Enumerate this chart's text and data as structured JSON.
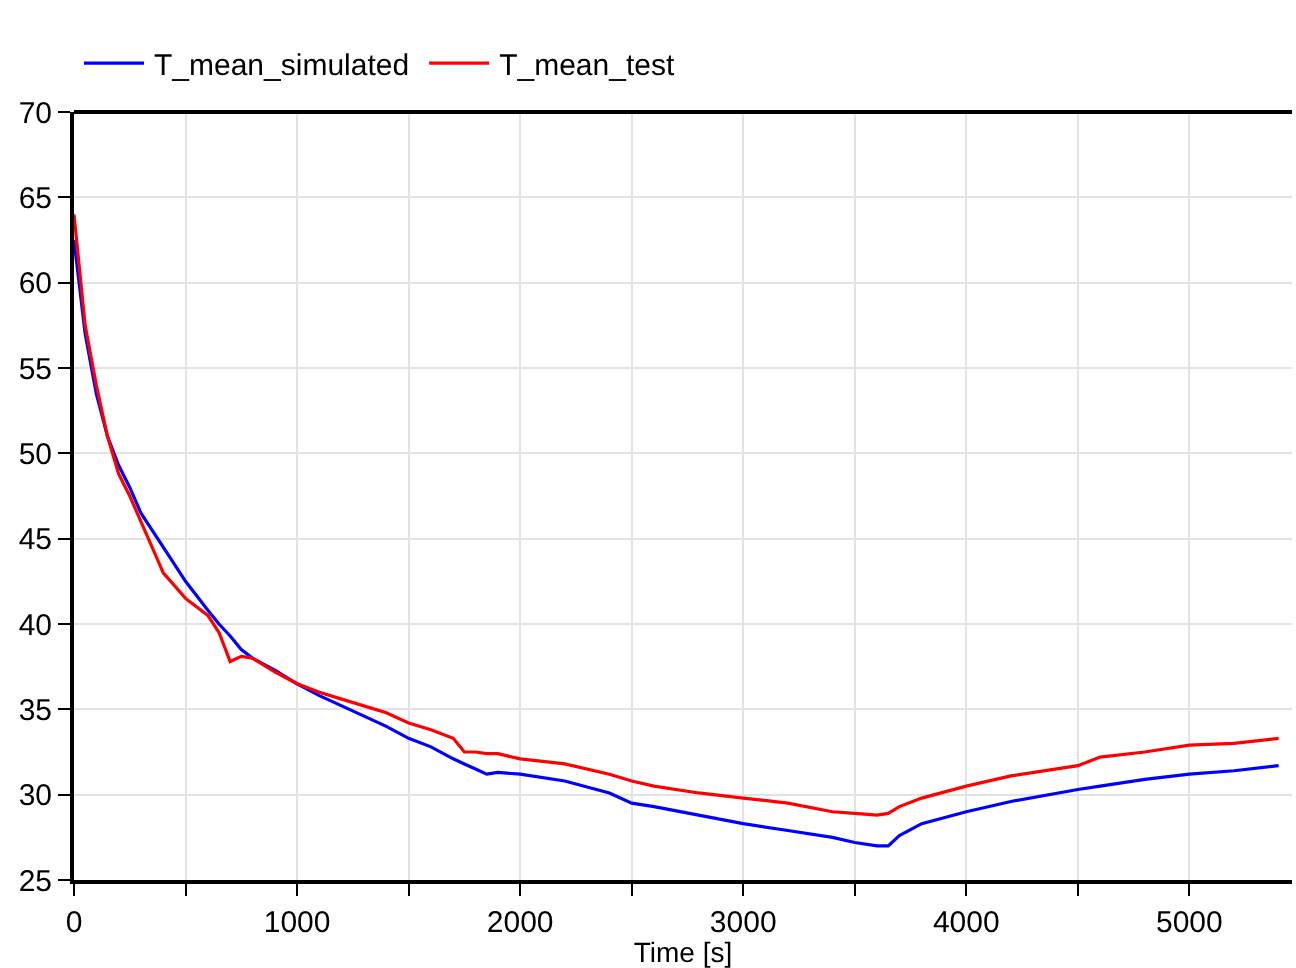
{
  "chart_data": {
    "type": "line",
    "xlabel": "Time [s]",
    "x": [
      0,
      50,
      100,
      150,
      200,
      250,
      300,
      350,
      400,
      500,
      600,
      650,
      700,
      750,
      800,
      900,
      1000,
      1100,
      1200,
      1400,
      1500,
      1600,
      1700,
      1750,
      1800,
      1850,
      1900,
      2000,
      2200,
      2400,
      2500,
      2600,
      2800,
      3000,
      3200,
      3400,
      3500,
      3600,
      3650,
      3700,
      3800,
      4000,
      4200,
      4500,
      4600,
      4800,
      5000,
      5200,
      5400
    ],
    "series": [
      {
        "name": "T_mean_simulated",
        "color": "#0000ff",
        "values": [
          62.5,
          57,
          53.5,
          51,
          49.3,
          48,
          46.5,
          45.5,
          44.5,
          42.5,
          40.8,
          40,
          39.3,
          38.5,
          38,
          37.3,
          36.5,
          35.8,
          35.2,
          34,
          33.3,
          32.8,
          32.1,
          31.8,
          31.5,
          31.2,
          31.3,
          31.2,
          30.8,
          30.1,
          29.5,
          29.3,
          28.8,
          28.3,
          27.9,
          27.5,
          27.2,
          27,
          27,
          27.6,
          28.3,
          29,
          29.6,
          30.3,
          30.5,
          30.9,
          31.2,
          31.4,
          31.7
        ]
      },
      {
        "name": "T_mean_test",
        "color": "#ff0000",
        "values": [
          64,
          57.5,
          54,
          51,
          48.8,
          47.5,
          46,
          44.5,
          43,
          41.5,
          40.5,
          39.5,
          37.8,
          38.1,
          38,
          37.2,
          36.5,
          36,
          35.6,
          34.8,
          34.2,
          33.8,
          33.3,
          32.5,
          32.5,
          32.4,
          32.4,
          32.1,
          31.8,
          31.2,
          30.8,
          30.5,
          30.1,
          29.8,
          29.5,
          29,
          28.9,
          28.8,
          28.9,
          29.3,
          29.8,
          30.5,
          31.1,
          31.7,
          32.2,
          32.5,
          32.9,
          33,
          33.3
        ]
      }
    ],
    "xlim": [
      0,
      5460
    ],
    "ylim": [
      25,
      70
    ],
    "xticks": [
      0,
      {
        "value": 500,
        "label": null
      },
      1000,
      {
        "value": 1500,
        "label": null
      },
      2000,
      {
        "value": 2500,
        "label": null
      },
      3000,
      {
        "value": 3500,
        "label": null
      },
      4000,
      {
        "value": 4500,
        "label": null
      },
      5000
    ],
    "yticks": [
      25,
      30,
      35,
      40,
      45,
      50,
      55,
      60,
      65,
      70
    ],
    "grid": true,
    "legend": "top left",
    "marker": "none",
    "line_style": "solid"
  }
}
